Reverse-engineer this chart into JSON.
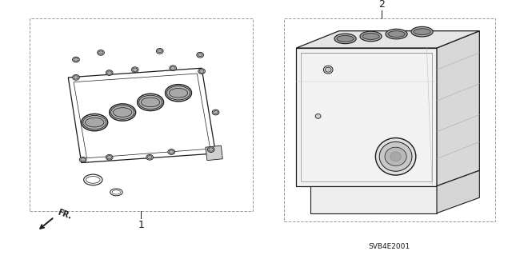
{
  "background_color": "#ffffff",
  "label1": "1",
  "label2": "2",
  "part_code": "SVB4E2001",
  "fig_width": 6.4,
  "fig_height": 3.19,
  "dpi": 100,
  "line_color": "#1a1a1a",
  "light_gray": "#d0d0d0",
  "mid_gray": "#b0b0b0",
  "dark_gray": "#888888",
  "box_dash_color": "#999999"
}
